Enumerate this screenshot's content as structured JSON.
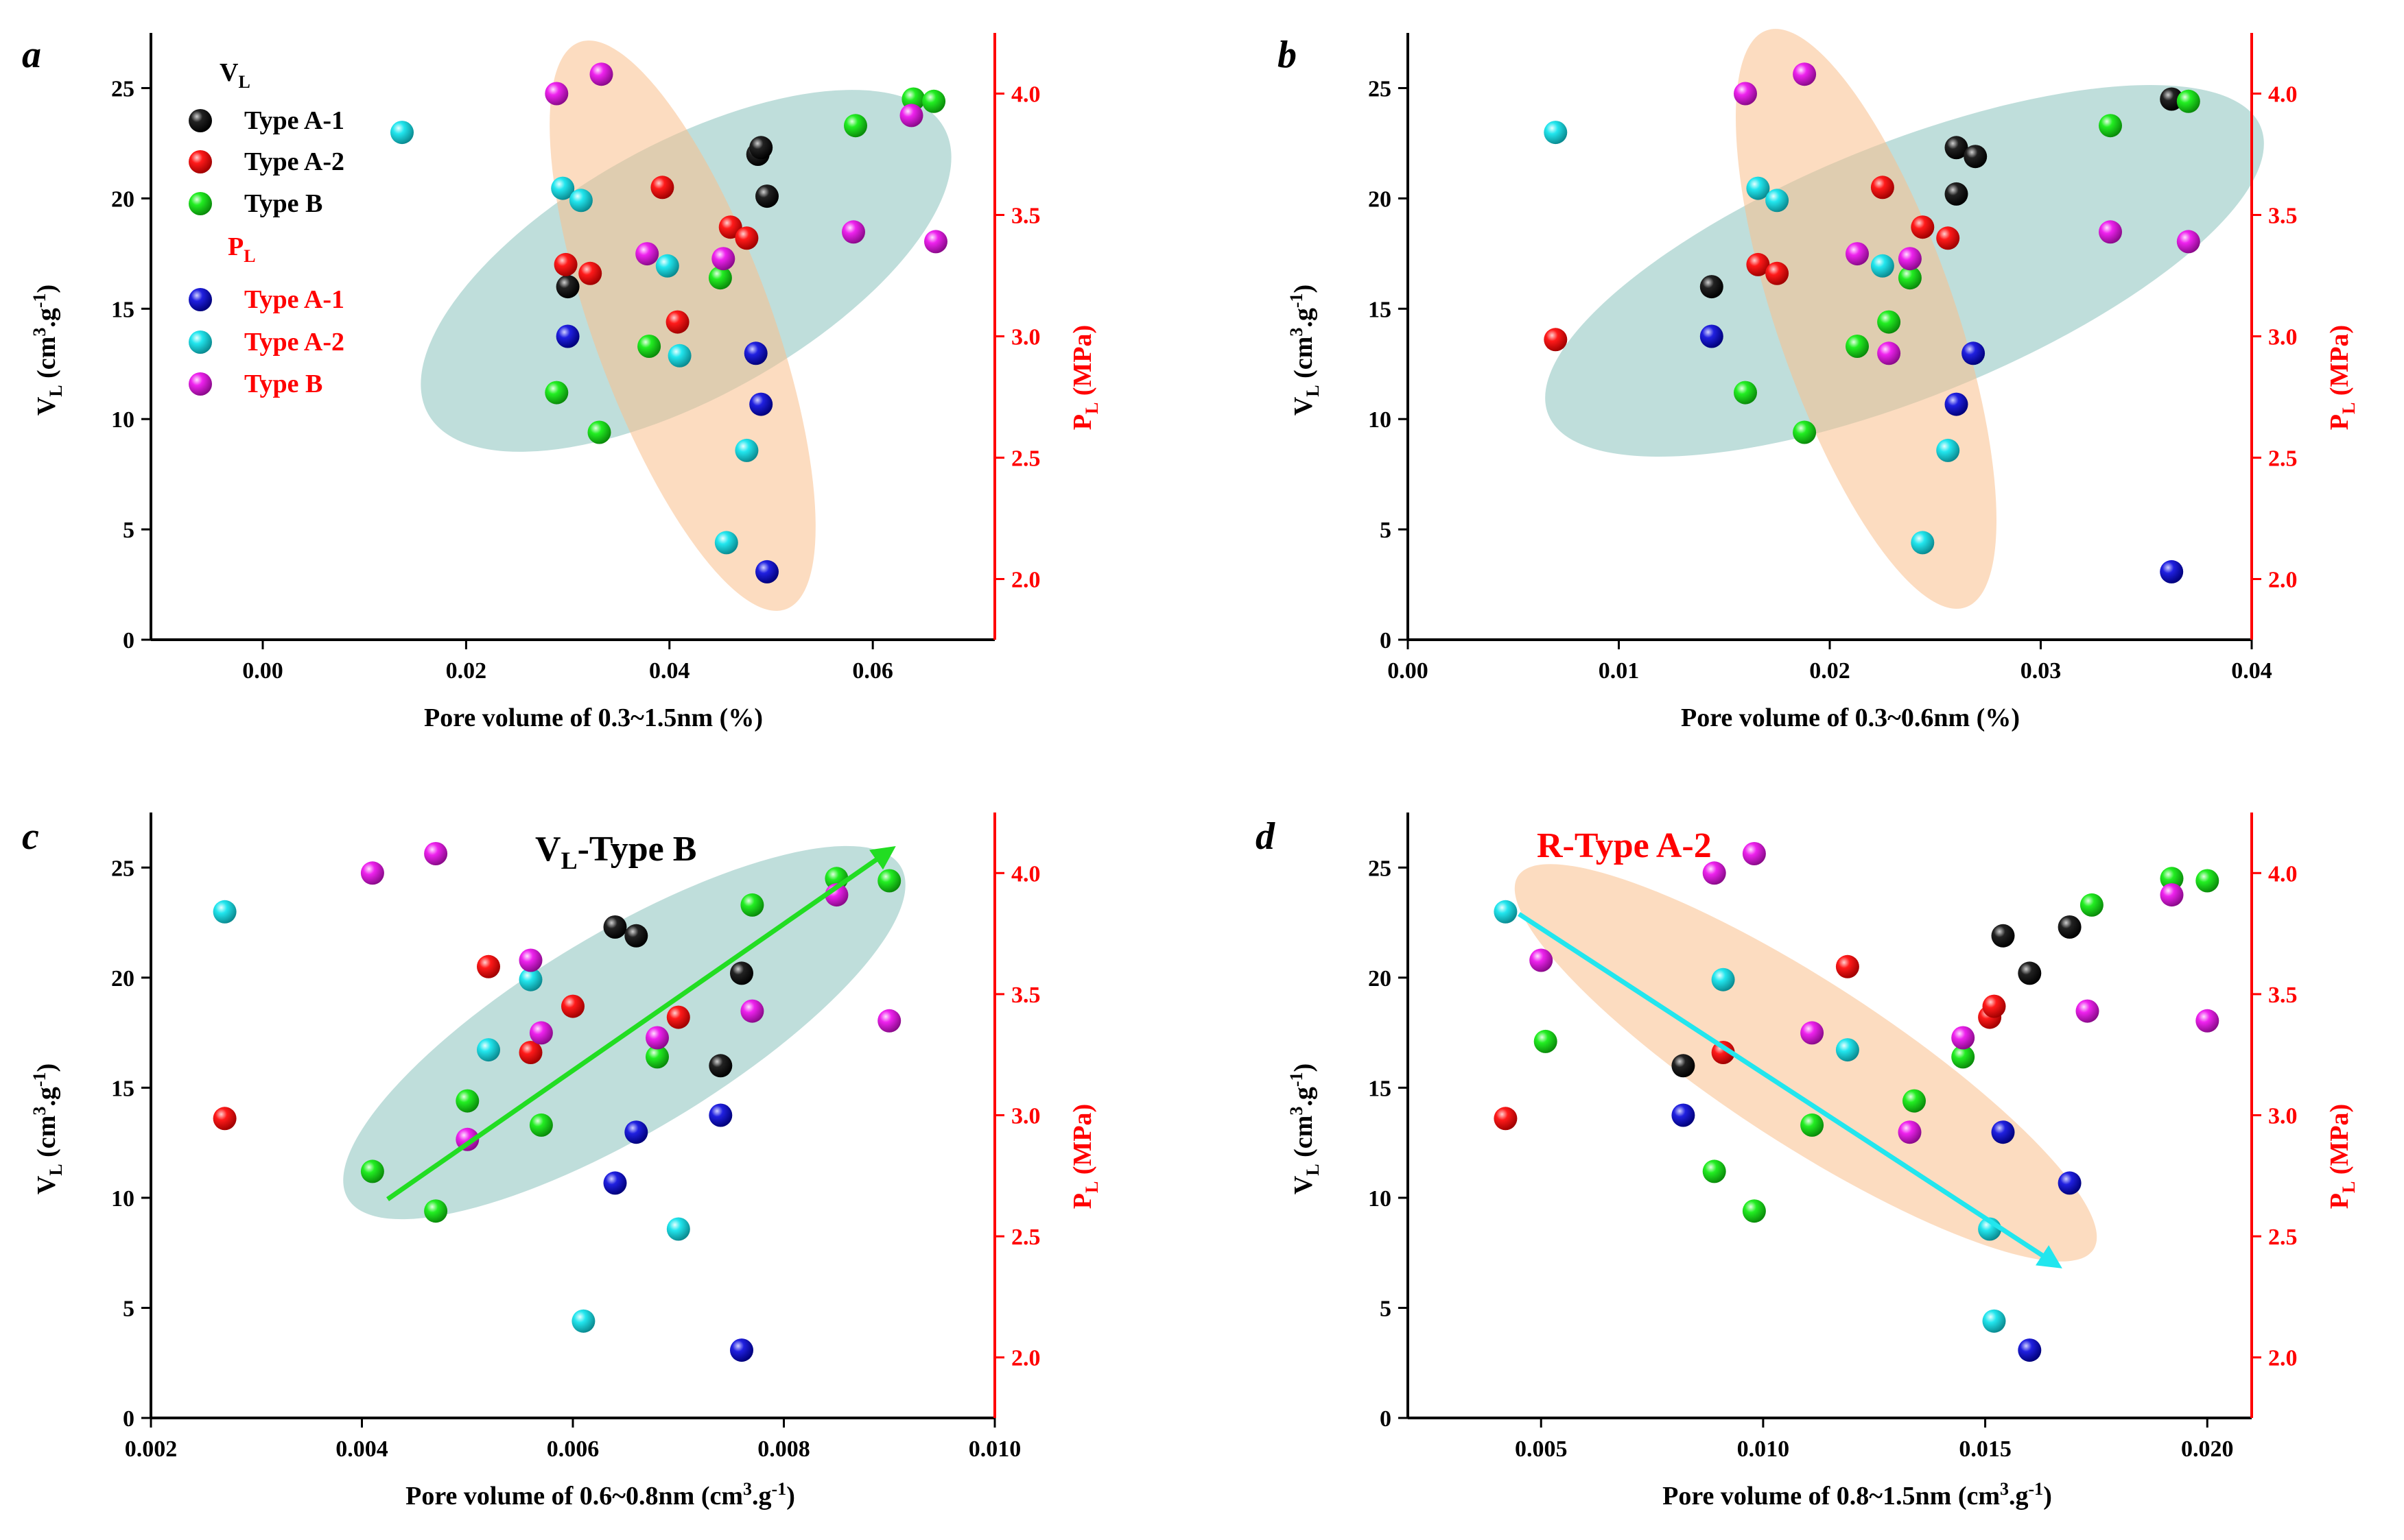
{
  "colors": {
    "axis_black": "#000000",
    "axis_red": "#ff0000",
    "type_a1_vl": "#111111",
    "type_a2_vl": "#ff1a1a",
    "type_b_vl": "#19e619",
    "type_a1_pl": "#1a1ad9",
    "type_a2_pl": "#22e6ee",
    "type_b_pl": "#ee22ee",
    "ellipse_teal": "#7fbdb8",
    "ellipse_orange": "#f9c08d",
    "arrow_green": "#22dd22",
    "arrow_cyan": "#22e6ee"
  },
  "legend": {
    "vl_header": "V",
    "vl_sub": "L",
    "pl_header": "P",
    "pl_sub": "L",
    "vl_items": [
      "Type A-1",
      "Type A-2",
      "Type B"
    ],
    "pl_items": [
      "Type A-1",
      "Type A-2",
      "Type B"
    ]
  },
  "chart_data": [
    {
      "panel": "a",
      "type": "scatter",
      "xlabel": "Pore volume of 0.3~1.5nm (%)",
      "ylabel_left": "VL (cm3.g-1)",
      "ylabel_right": "PL (MPa)",
      "xlim": [
        -0.011,
        0.072
      ],
      "xticks": [
        "0.00",
        "0.02",
        "0.04",
        "0.06"
      ],
      "xtick_values": [
        0.0,
        0.02,
        0.04,
        0.06
      ],
      "ylim_left": [
        0,
        27.5
      ],
      "yticks_left": [
        0,
        5,
        10,
        15,
        20,
        25
      ],
      "ylim_right": [
        1.75,
        4.25
      ],
      "yticks_right": [
        "2.0",
        "2.5",
        "3.0",
        "3.5",
        "4.0"
      ],
      "series": [
        {
          "name": "VL Type A-1",
          "axis": "left",
          "x": [
            0.03,
            0.0487,
            0.049,
            0.0496
          ],
          "y": [
            16.0,
            22.0,
            22.3,
            20.1
          ]
        },
        {
          "name": "VL Type A-2",
          "axis": "left",
          "x": [
            0.0298,
            0.0322,
            0.0393,
            0.0408,
            0.046,
            0.0476
          ],
          "y": [
            17.0,
            16.6,
            20.5,
            14.4,
            18.7,
            18.2
          ]
        },
        {
          "name": "VL Type B",
          "axis": "left",
          "x": [
            0.0289,
            0.0331,
            0.038,
            0.045,
            0.0583,
            0.064,
            0.066
          ],
          "y": [
            11.2,
            9.4,
            13.3,
            16.4,
            23.3,
            24.5,
            24.4
          ]
        },
        {
          "name": "PL Type A-1",
          "axis": "right",
          "x": [
            0.03,
            0.0485,
            0.049,
            0.0496
          ],
          "y": [
            3.0,
            2.93,
            2.72,
            2.03
          ]
        },
        {
          "name": "PL Type A-2",
          "axis": "right",
          "x": [
            0.0137,
            0.0295,
            0.0313,
            0.0398,
            0.041,
            0.0456,
            0.0476
          ],
          "y": [
            3.84,
            3.61,
            3.56,
            3.29,
            2.92,
            2.15,
            2.53
          ]
        },
        {
          "name": "PL Type B",
          "axis": "right",
          "x": [
            0.0289,
            0.0333,
            0.0378,
            0.0453,
            0.0581,
            0.0638,
            0.0662
          ],
          "y": [
            4.0,
            4.08,
            3.34,
            3.32,
            3.43,
            3.91,
            3.39
          ]
        }
      ]
    },
    {
      "panel": "b",
      "type": "scatter",
      "xlabel": "Pore volume of 0.3~0.6nm (%)",
      "ylabel_left": "VL (cm3.g-1)",
      "ylabel_right": "PL (MPa)",
      "xlim": [
        0.0,
        0.04
      ],
      "xticks": [
        "0.00",
        "0.01",
        "0.02",
        "0.03",
        "0.04"
      ],
      "xtick_values": [
        0.0,
        0.01,
        0.02,
        0.03,
        0.04
      ],
      "ylim_left": [
        0,
        27.5
      ],
      "yticks_left": [
        0,
        5,
        10,
        15,
        20,
        25
      ],
      "ylim_right": [
        1.75,
        4.25
      ],
      "yticks_right": [
        "2.0",
        "2.5",
        "3.0",
        "3.5",
        "4.0"
      ],
      "series": [
        {
          "name": "VL Type A-1",
          "axis": "left",
          "x": [
            0.0144,
            0.026,
            0.026,
            0.0269,
            0.0362
          ],
          "y": [
            16.0,
            22.3,
            20.2,
            21.9,
            24.5
          ]
        },
        {
          "name": "VL Type A-2",
          "axis": "left",
          "x": [
            0.007,
            0.0166,
            0.0175,
            0.0225,
            0.0244,
            0.0256
          ],
          "y": [
            13.6,
            17.0,
            16.6,
            20.5,
            18.7,
            18.2
          ]
        },
        {
          "name": "VL Type B",
          "axis": "left",
          "x": [
            0.016,
            0.0188,
            0.0213,
            0.0228,
            0.0238,
            0.0333,
            0.037
          ],
          "y": [
            11.2,
            9.4,
            13.3,
            14.4,
            16.4,
            23.3,
            24.4
          ]
        },
        {
          "name": "PL Type A-1",
          "axis": "right",
          "x": [
            0.0144,
            0.026,
            0.0268,
            0.0362
          ],
          "y": [
            3.0,
            2.72,
            2.93,
            2.03
          ]
        },
        {
          "name": "PL Type A-2",
          "axis": "right",
          "x": [
            0.007,
            0.0166,
            0.0175,
            0.0225,
            0.0244,
            0.0256
          ],
          "y": [
            3.84,
            3.61,
            3.56,
            3.29,
            2.15,
            2.53
          ]
        },
        {
          "name": "PL Type B",
          "axis": "right",
          "x": [
            0.016,
            0.0188,
            0.0213,
            0.0228,
            0.0238,
            0.0333,
            0.037
          ],
          "y": [
            4.0,
            4.08,
            3.34,
            2.93,
            3.32,
            3.43,
            3.39
          ]
        }
      ]
    },
    {
      "panel": "c",
      "type": "scatter",
      "title": "VL-Type B",
      "xlabel": "Pore volume of 0.6~0.8nm (cm3.g-1)",
      "ylabel_left": "VL (cm3.g-1)",
      "ylabel_right": "PL (MPa)",
      "xlim": [
        0.002,
        0.01
      ],
      "xticks": [
        "0.002",
        "0.004",
        "0.006",
        "0.008",
        "0.010"
      ],
      "xtick_values": [
        0.002,
        0.004,
        0.006,
        0.008,
        0.01
      ],
      "ylim_left": [
        0,
        27.5
      ],
      "yticks_left": [
        0,
        5,
        10,
        15,
        20,
        25
      ],
      "ylim_right": [
        1.75,
        4.25
      ],
      "yticks_right": [
        "2.0",
        "2.5",
        "3.0",
        "3.5",
        "4.0"
      ],
      "series": [
        {
          "name": "VL Type A-1",
          "axis": "left",
          "x": [
            0.0064,
            0.0066,
            0.0074,
            0.0076
          ],
          "y": [
            22.3,
            21.9,
            16.0,
            20.2
          ]
        },
        {
          "name": "VL Type A-2",
          "axis": "left",
          "x": [
            0.0027,
            0.0052,
            0.0056,
            0.006,
            0.007
          ],
          "y": [
            13.6,
            20.5,
            16.6,
            18.7,
            18.2
          ]
        },
        {
          "name": "VL Type B",
          "axis": "left",
          "x": [
            0.0041,
            0.0047,
            0.005,
            0.0057,
            0.0068,
            0.0077,
            0.0085,
            0.009
          ],
          "y": [
            11.2,
            9.4,
            14.4,
            13.3,
            16.4,
            23.3,
            24.5,
            24.4
          ]
        },
        {
          "name": "PL Type A-1",
          "axis": "right",
          "x": [
            0.0064,
            0.0066,
            0.0074,
            0.0076
          ],
          "y": [
            2.72,
            2.93,
            3.0,
            2.03
          ]
        },
        {
          "name": "PL Type A-2",
          "axis": "right",
          "x": [
            0.0027,
            0.0052,
            0.0056,
            0.0061,
            0.007
          ],
          "y": [
            3.84,
            3.27,
            3.56,
            2.15,
            2.53
          ]
        },
        {
          "name": "PL Type B",
          "axis": "right",
          "x": [
            0.0041,
            0.0047,
            0.005,
            0.0056,
            0.0057,
            0.0068,
            0.0077,
            0.0085,
            0.009
          ],
          "y": [
            4.0,
            4.08,
            2.9,
            3.64,
            3.34,
            3.32,
            3.43,
            3.91,
            3.39
          ]
        }
      ]
    },
    {
      "panel": "d",
      "type": "scatter",
      "title": "R-Type A-2",
      "xlabel": "Pore volume of 0.8~1.5nm (cm3.g-1)",
      "ylabel_left": "VL (cm3.g-1)",
      "ylabel_right": "PL (MPa)",
      "xlim": [
        0.002,
        0.021
      ],
      "xticks": [
        "0.005",
        "0.010",
        "0.015",
        "0.020"
      ],
      "xtick_values": [
        0.005,
        0.01,
        0.015,
        0.02
      ],
      "ylim_left": [
        0,
        27.5
      ],
      "yticks_left": [
        0,
        5,
        10,
        15,
        20,
        25
      ],
      "ylim_right": [
        1.75,
        4.25
      ],
      "yticks_right": [
        "2.0",
        "2.5",
        "3.0",
        "3.5",
        "4.0"
      ],
      "series": [
        {
          "name": "VL Type A-1",
          "axis": "left",
          "x": [
            0.0082,
            0.0154,
            0.016,
            0.0169
          ],
          "y": [
            16.0,
            21.9,
            20.2,
            22.3
          ]
        },
        {
          "name": "VL Type A-2",
          "axis": "left",
          "x": [
            0.0042,
            0.0091,
            0.0119,
            0.0151,
            0.0152
          ],
          "y": [
            13.6,
            16.6,
            20.5,
            18.2,
            18.7
          ]
        },
        {
          "name": "VL Type B",
          "axis": "left",
          "x": [
            0.0051,
            0.0089,
            0.0098,
            0.0111,
            0.0134,
            0.0145,
            0.0174,
            0.0192,
            0.02
          ],
          "y": [
            17.1,
            11.2,
            9.4,
            13.3,
            14.4,
            16.4,
            23.3,
            24.5,
            24.4
          ]
        },
        {
          "name": "PL Type A-1",
          "axis": "right",
          "x": [
            0.0082,
            0.0154,
            0.016,
            0.0169
          ],
          "y": [
            3.0,
            2.93,
            2.03,
            2.72
          ]
        },
        {
          "name": "PL Type A-2",
          "axis": "right",
          "x": [
            0.0042,
            0.0091,
            0.0119,
            0.0151,
            0.0152
          ],
          "y": [
            3.84,
            3.56,
            3.27,
            2.53,
            2.15
          ]
        },
        {
          "name": "PL Type B",
          "axis": "right",
          "x": [
            0.005,
            0.0089,
            0.0098,
            0.0111,
            0.0133,
            0.0145,
            0.0173,
            0.0192,
            0.02
          ],
          "y": [
            3.64,
            4.0,
            4.08,
            3.34,
            2.93,
            3.32,
            3.43,
            3.91,
            3.39
          ]
        }
      ]
    }
  ]
}
